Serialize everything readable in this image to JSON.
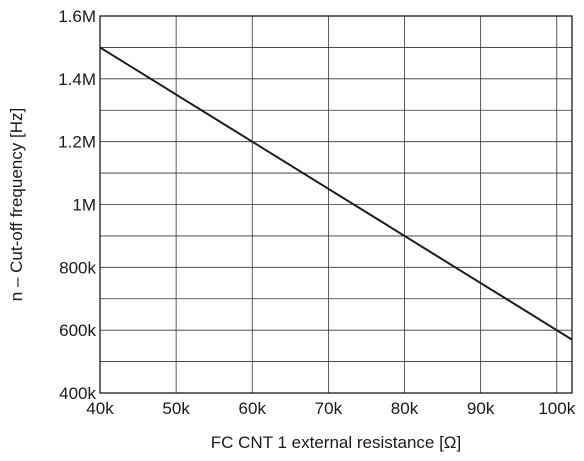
{
  "chart_data": {
    "type": "line",
    "title": "",
    "xlabel": "FC CNT 1 external resistance [Ω]",
    "ylabel": "n – Cut-off frequency [Hz]",
    "xlim": [
      40000,
      102000
    ],
    "ylim": [
      400000,
      1600000
    ],
    "x_ticks": [
      {
        "value": 40000,
        "label": "40k"
      },
      {
        "value": 50000,
        "label": "50k"
      },
      {
        "value": 60000,
        "label": "60k"
      },
      {
        "value": 70000,
        "label": "70k"
      },
      {
        "value": 80000,
        "label": "80k"
      },
      {
        "value": 90000,
        "label": "90k"
      },
      {
        "value": 100000,
        "label": "100k"
      }
    ],
    "y_ticks": [
      {
        "value": 400000,
        "label": "400k"
      },
      {
        "value": 600000,
        "label": "600k"
      },
      {
        "value": 800000,
        "label": "800k"
      },
      {
        "value": 1000000,
        "label": "1M"
      },
      {
        "value": 1200000,
        "label": "1.2M"
      },
      {
        "value": 1400000,
        "label": "1.4M"
      },
      {
        "value": 1600000,
        "label": "1.6M"
      }
    ],
    "y_minor_grid": [
      500000,
      700000,
      900000,
      1100000,
      1300000,
      1500000
    ],
    "grid": true,
    "series": [
      {
        "x": [
          40000,
          50000,
          60000,
          70000,
          80000,
          90000,
          100000,
          102000
        ],
        "y": [
          1500000,
          1350000,
          1200000,
          1050000,
          900000,
          750000,
          600000,
          570000
        ],
        "color": "#1a1a1a"
      }
    ],
    "colors": {
      "line": "#1a1a1a",
      "grid": "#333333",
      "frame": "#1a1a1a",
      "text": "#1a1a1a"
    }
  }
}
